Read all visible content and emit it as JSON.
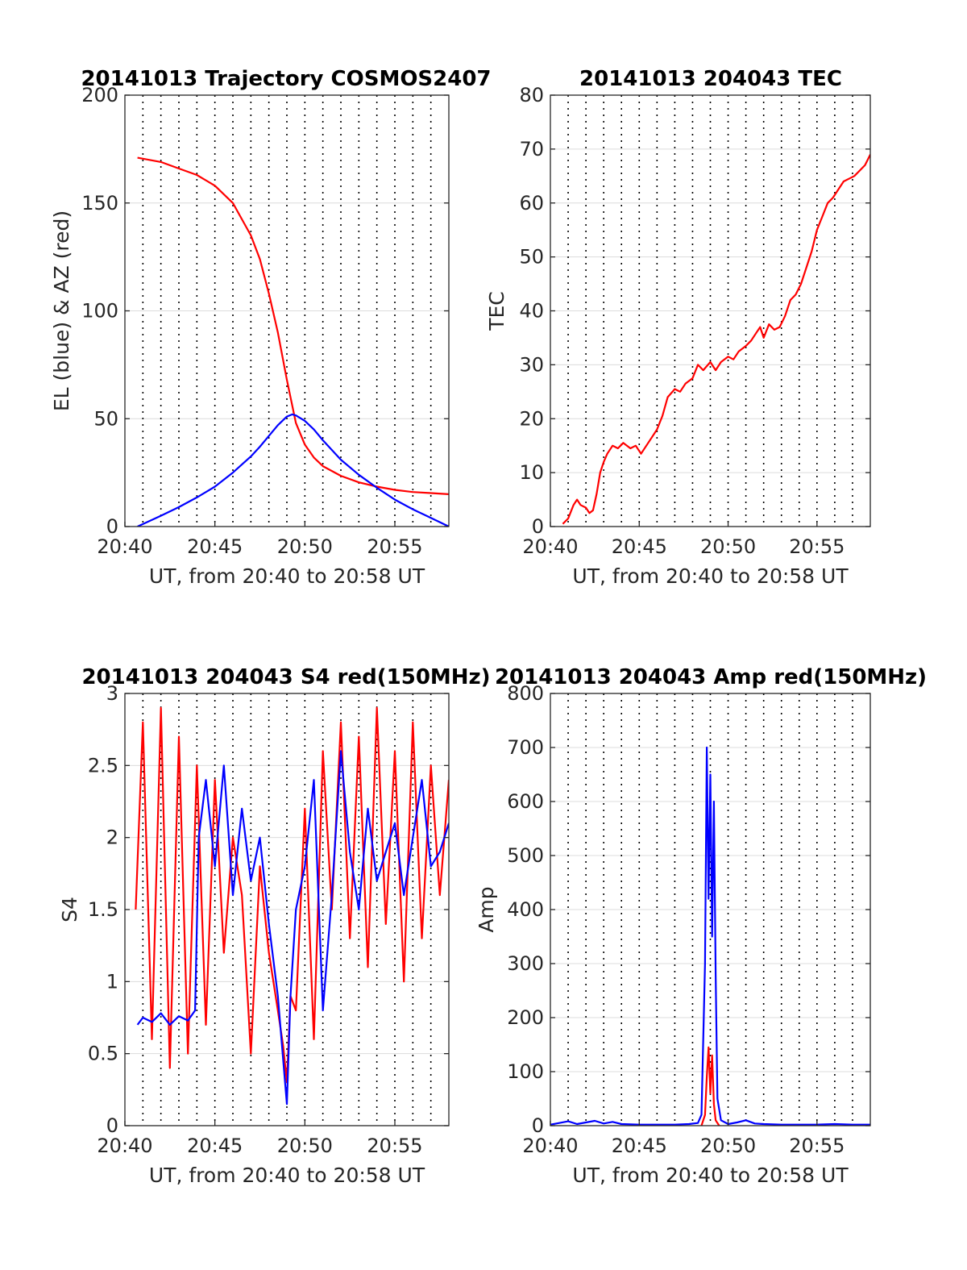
{
  "colors": {
    "el": "#0000ff",
    "az": "#ff0000"
  },
  "chart_data": [
    {
      "type": "line",
      "title": "20141013 Trajectory COSMOS2407",
      "xlabel": "UT, from 20:40 to 20:58 UT",
      "ylabel": "EL (blue) & AZ (red)",
      "xlim": [
        0,
        18
      ],
      "ylim": [
        0,
        200
      ],
      "yticks": [
        0,
        50,
        100,
        150,
        200
      ],
      "xtick_labels": [
        "20:40",
        "20:45",
        "20:50",
        "20:55"
      ],
      "series": [
        {
          "color": "#ff0000",
          "x": [
            0.7,
            2,
            3,
            4,
            5,
            6,
            7,
            7.5,
            8,
            8.5,
            9,
            9.5,
            10,
            10.5,
            11,
            12,
            13,
            14,
            15,
            16,
            17,
            18
          ],
          "y": [
            171,
            169,
            166,
            163,
            158,
            150,
            135,
            124,
            108,
            90,
            68,
            48,
            38,
            32,
            28,
            23.5,
            20.5,
            18.5,
            17,
            16,
            15.5,
            15
          ]
        },
        {
          "color": "#0000ff",
          "x": [
            0.7,
            2,
            3,
            4,
            5,
            6,
            7,
            7.5,
            8,
            8.5,
            9,
            9.3,
            9.5,
            10,
            10.5,
            11,
            12,
            13,
            14,
            15,
            16,
            17,
            18
          ],
          "y": [
            0,
            5,
            9,
            13.5,
            18.5,
            25,
            32.5,
            37,
            42,
            47,
            51,
            52,
            51.5,
            49,
            45,
            40,
            31,
            24,
            18,
            12.5,
            8,
            4,
            0
          ]
        }
      ]
    },
    {
      "type": "line",
      "title": "20141013 204043 TEC",
      "xlabel": "UT, from 20:40 to 20:58 UT",
      "ylabel": "TEC",
      "xlim": [
        0,
        18
      ],
      "ylim": [
        0,
        80
      ],
      "yticks": [
        0,
        10,
        20,
        30,
        40,
        50,
        60,
        70,
        80
      ],
      "xtick_labels": [
        "20:40",
        "20:45",
        "20:50",
        "20:55"
      ],
      "series": [
        {
          "color": "#ff0000",
          "x": [
            0.7,
            1.0,
            1.3,
            1.5,
            1.7,
            2.0,
            2.2,
            2.4,
            2.6,
            2.8,
            3.0,
            3.2,
            3.5,
            3.8,
            4.1,
            4.5,
            4.8,
            5.1,
            5.4,
            5.7,
            6.0,
            6.3,
            6.6,
            7.0,
            7.3,
            7.6,
            8.0,
            8.3,
            8.6,
            9.0,
            9.3,
            9.6,
            10.0,
            10.3,
            10.6,
            11.0,
            11.3,
            11.6,
            11.8,
            12.0,
            12.3,
            12.6,
            12.9,
            13.2,
            13.5,
            13.8,
            14.1,
            14.4,
            14.7,
            15.0,
            15.3,
            15.6,
            15.9,
            16.2,
            16.5,
            16.8,
            17.1,
            17.4,
            17.7,
            18.0
          ],
          "y": [
            0.5,
            1.5,
            4,
            5,
            4,
            3.5,
            2.5,
            3,
            6,
            10,
            12,
            13.5,
            15,
            14.5,
            15.5,
            14.5,
            15,
            13.5,
            15,
            16.5,
            18,
            20.5,
            24,
            25.5,
            25,
            26.5,
            27.5,
            30,
            29,
            30.5,
            29,
            30.5,
            31.5,
            31,
            32.5,
            33.5,
            34.5,
            36,
            37,
            35,
            37.5,
            36.5,
            37,
            39,
            42,
            43,
            45,
            48,
            51,
            55,
            57.5,
            60,
            61,
            62.5,
            64,
            64.5,
            65,
            66,
            67,
            69
          ]
        }
      ]
    },
    {
      "type": "line",
      "title": "20141013 204043 S4 red(150MHz)",
      "xlabel": "UT, from 20:40 to 20:58 UT",
      "ylabel": "S4",
      "xlim": [
        0,
        18
      ],
      "ylim": [
        0,
        3
      ],
      "yticks": [
        0,
        0.5,
        1,
        1.5,
        2,
        2.5,
        3
      ],
      "ytick_labels": [
        "0",
        "0.5",
        "1",
        "1.5",
        "2",
        "2.5",
        "3"
      ],
      "xtick_labels": [
        "20:40",
        "20:45",
        "20:50",
        "20:55"
      ],
      "series": [
        {
          "color": "#ff0000",
          "x": [
            0.6,
            1.0,
            1.5,
            2.0,
            2.5,
            3.0,
            3.5,
            4.0,
            4.5,
            5.0,
            5.5,
            6.0,
            6.5,
            7.0,
            7.5,
            8.0,
            8.5,
            8.8,
            9.0,
            9.2,
            9.5,
            10.0,
            10.5,
            11.0,
            11.5,
            12.0,
            12.5,
            13.0,
            13.5,
            14.0,
            14.5,
            15.0,
            15.5,
            16.0,
            16.5,
            17.0,
            17.5,
            18.0
          ],
          "y": [
            1.5,
            2.8,
            0.6,
            2.9,
            0.4,
            2.7,
            0.5,
            2.5,
            0.7,
            2.4,
            1.2,
            2.0,
            1.6,
            0.5,
            1.8,
            1.2,
            0.8,
            0.55,
            0.3,
            0.9,
            0.8,
            2.2,
            0.6,
            2.6,
            1.5,
            2.8,
            1.3,
            2.7,
            1.1,
            2.9,
            1.4,
            2.6,
            1.0,
            2.8,
            1.3,
            2.5,
            1.6,
            2.4
          ]
        },
        {
          "color": "#0000ff",
          "x": [
            0.7,
            1.0,
            1.5,
            2.0,
            2.5,
            3.0,
            3.5,
            3.9,
            4.1,
            4.5,
            5.0,
            5.5,
            6.0,
            6.5,
            7.0,
            7.5,
            8.0,
            8.5,
            8.8,
            9.0,
            9.2,
            9.5,
            10.0,
            10.5,
            11.0,
            11.5,
            12.0,
            12.5,
            13.0,
            13.5,
            14.0,
            14.5,
            15.0,
            15.5,
            16.0,
            16.5,
            17.0,
            17.5,
            18.0
          ],
          "y": [
            0.7,
            0.75,
            0.72,
            0.78,
            0.7,
            0.76,
            0.73,
            0.8,
            2.0,
            2.4,
            1.8,
            2.5,
            1.6,
            2.2,
            1.7,
            2.0,
            1.4,
            0.9,
            0.45,
            0.15,
            0.9,
            1.5,
            1.8,
            2.4,
            0.8,
            1.6,
            2.6,
            1.9,
            1.5,
            2.2,
            1.7,
            1.9,
            2.1,
            1.6,
            2.0,
            2.4,
            1.8,
            1.9,
            2.1
          ]
        }
      ]
    },
    {
      "type": "line",
      "title": "20141013 204043 Amp red(150MHz)",
      "xlabel": "UT, from 20:40 to 20:58 UT",
      "ylabel": "Amp",
      "xlim": [
        0,
        18
      ],
      "ylim": [
        0,
        800
      ],
      "yticks": [
        0,
        100,
        200,
        300,
        400,
        500,
        600,
        700,
        800
      ],
      "xtick_labels": [
        "20:40",
        "20:45",
        "20:50",
        "20:55"
      ],
      "series": [
        {
          "color": "#0000ff",
          "x": [
            0,
            0.5,
            1.0,
            1.5,
            2.0,
            2.5,
            3.0,
            3.5,
            4.0,
            5.0,
            6.0,
            7.0,
            7.8,
            8.3,
            8.5,
            8.7,
            8.8,
            8.9,
            9.0,
            9.1,
            9.2,
            9.3,
            9.4,
            9.6,
            10.0,
            10.5,
            11.0,
            11.5,
            12.0,
            13.0,
            14.0,
            15.0,
            16.0,
            17.0,
            18.0
          ],
          "y": [
            2,
            5,
            8,
            3,
            6,
            9,
            4,
            7,
            3,
            2,
            2,
            2,
            3,
            5,
            20,
            300,
            700,
            420,
            650,
            350,
            600,
            280,
            50,
            10,
            3,
            6,
            10,
            4,
            3,
            2,
            2,
            2,
            3,
            2,
            2
          ]
        },
        {
          "color": "#ff0000",
          "x": [
            8.5,
            8.7,
            8.8,
            8.9,
            9.0,
            9.1,
            9.2,
            9.3,
            9.5
          ],
          "y": [
            0,
            20,
            90,
            145,
            60,
            130,
            40,
            10,
            0
          ]
        }
      ]
    }
  ]
}
